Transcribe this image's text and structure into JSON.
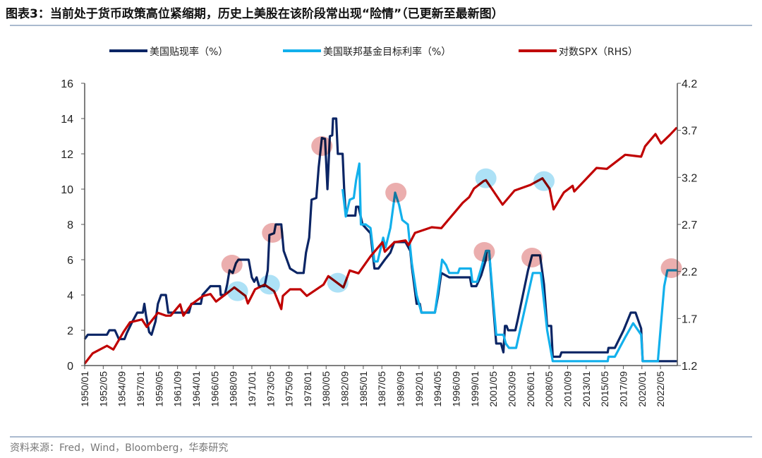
{
  "title": "图表3：当前处于货币政策高位紧缩期，历史上美股在该阶段常出现“险情”（已更新至最新图）",
  "source": "资料来源：Fred，Wind，Bloomberg，华泰研究",
  "chart_data": {
    "type": "line",
    "title": "",
    "legend_position": "top",
    "grid": false,
    "x_ticks": [
      "1950/01",
      "1952/05",
      "1954/09",
      "1957/01",
      "1959/05",
      "1961/09",
      "1964/01",
      "1966/05",
      "1968/09",
      "1971/01",
      "1973/05",
      "1975/09",
      "1978/01",
      "1980/05",
      "1982/09",
      "1985/01",
      "1987/05",
      "1989/09",
      "1992/01",
      "1994/05",
      "1996/09",
      "1999/01",
      "2001/05",
      "2003/09",
      "2006/01",
      "2008/05",
      "2010/09",
      "2013/01",
      "2015/05",
      "2017/09",
      "2020/01",
      "2022/05"
    ],
    "y_left": {
      "range": [
        0,
        16
      ],
      "ticks": [
        "0",
        "2",
        "4",
        "6",
        "8",
        "10",
        "12",
        "14",
        "16"
      ]
    },
    "y_right": {
      "range": [
        1.2,
        4.2
      ],
      "ticks": [
        "1.2",
        "1.7",
        "2.2",
        "2.7",
        "3.2",
        "3.7",
        "4.2"
      ]
    },
    "series": [
      {
        "name": "美国贴现率（%）",
        "axis": "left",
        "color": "#0b2565",
        "points": [
          [
            1950,
            1.5
          ],
          [
            1950.4,
            1.75
          ],
          [
            1952.8,
            1.75
          ],
          [
            1953.1,
            2.0
          ],
          [
            1953.8,
            2.0
          ],
          [
            1954.3,
            1.5
          ],
          [
            1955,
            1.5
          ],
          [
            1955.3,
            1.85
          ],
          [
            1956,
            2.5
          ],
          [
            1956.3,
            2.75
          ],
          [
            1956.6,
            3.0
          ],
          [
            1957.3,
            3.0
          ],
          [
            1957.5,
            3.5
          ],
          [
            1957.7,
            2.85
          ],
          [
            1958.1,
            1.9
          ],
          [
            1958.4,
            1.75
          ],
          [
            1958.9,
            2.5
          ],
          [
            1959.2,
            3.5
          ],
          [
            1959.6,
            4.0
          ],
          [
            1960.2,
            4.0
          ],
          [
            1960.5,
            3.0
          ],
          [
            1963.1,
            3.0
          ],
          [
            1963.4,
            3.5
          ],
          [
            1964.6,
            3.5
          ],
          [
            1964.8,
            4.0
          ],
          [
            1965.8,
            4.5
          ],
          [
            1967,
            4.5
          ],
          [
            1967.1,
            4.0
          ],
          [
            1967.6,
            4.0
          ],
          [
            1967.9,
            4.6
          ],
          [
            1968.2,
            5.4
          ],
          [
            1968.6,
            5.25
          ],
          [
            1969,
            5.8
          ],
          [
            1969.3,
            6.0
          ],
          [
            1970.6,
            6.0
          ],
          [
            1971,
            5.0
          ],
          [
            1971.3,
            4.75
          ],
          [
            1971.6,
            5.0
          ],
          [
            1971.9,
            4.5
          ],
          [
            1972.6,
            4.5
          ],
          [
            1973,
            5.4
          ],
          [
            1973.2,
            7.4
          ],
          [
            1973.8,
            7.5
          ],
          [
            1974,
            8.0
          ],
          [
            1974.7,
            8.0
          ],
          [
            1975,
            6.5
          ],
          [
            1975.4,
            6.0
          ],
          [
            1975.8,
            5.5
          ],
          [
            1976.7,
            5.25
          ],
          [
            1977.5,
            5.25
          ],
          [
            1977.8,
            6.4
          ],
          [
            1978.2,
            7.25
          ],
          [
            1978.5,
            9.4
          ],
          [
            1979.1,
            9.5
          ],
          [
            1979.4,
            11.25
          ],
          [
            1979.8,
            12.9
          ],
          [
            1980.2,
            12.85
          ],
          [
            1980.5,
            10.0
          ],
          [
            1980.8,
            13.0
          ],
          [
            1981.1,
            13.05
          ],
          [
            1981.2,
            14.0
          ],
          [
            1981.6,
            14.0
          ],
          [
            1981.8,
            12.0
          ],
          [
            1982.4,
            12.0
          ],
          [
            1982.6,
            10.0
          ],
          [
            1982.8,
            8.5
          ],
          [
            1984,
            8.5
          ],
          [
            1984.1,
            9.0
          ],
          [
            1984.4,
            9.0
          ],
          [
            1984.9,
            8.0
          ],
          [
            1985.3,
            7.8
          ],
          [
            1985.9,
            7.5
          ],
          [
            1986.4,
            5.5
          ],
          [
            1986.9,
            5.5
          ],
          [
            1987.7,
            6.0
          ],
          [
            1988.4,
            6.4
          ],
          [
            1988.9,
            7.0
          ],
          [
            1990.3,
            7.0
          ],
          [
            1990.9,
            6.5
          ],
          [
            1991.1,
            5.6
          ],
          [
            1991.7,
            3.5
          ],
          [
            1992.1,
            3.5
          ],
          [
            1992.3,
            3.0
          ],
          [
            1994,
            3.0
          ],
          [
            1994.4,
            4.0
          ],
          [
            1994.8,
            5.25
          ],
          [
            1995.8,
            5.0
          ],
          [
            1998.4,
            5.0
          ],
          [
            1998.6,
            4.5
          ],
          [
            1999.2,
            4.5
          ],
          [
            1999.8,
            5.1
          ],
          [
            2000.4,
            6.0
          ],
          [
            2000.5,
            6.5
          ],
          [
            2000.8,
            6.5
          ],
          [
            2001.1,
            4.7
          ],
          [
            2001.7,
            1.25
          ],
          [
            2002.3,
            1.25
          ],
          [
            2002.6,
            0.75
          ],
          [
            2002.8,
            2.25
          ],
          [
            2003,
            2.25
          ],
          [
            2003.2,
            2.0
          ],
          [
            2004.1,
            2.0
          ],
          [
            2004.4,
            2.6
          ],
          [
            2005.7,
            5.4
          ],
          [
            2006.2,
            6.25
          ],
          [
            2007.2,
            6.25
          ],
          [
            2007.7,
            4.6
          ],
          [
            2008.1,
            2.25
          ],
          [
            2008.6,
            2.25
          ],
          [
            2008.8,
            0.5
          ],
          [
            2009.7,
            0.5
          ],
          [
            2009.9,
            0.75
          ],
          [
            2015.7,
            0.75
          ],
          [
            2015.8,
            1.0
          ],
          [
            2016.6,
            1.0
          ],
          [
            2017.7,
            2.0
          ],
          [
            2018.6,
            3.0
          ],
          [
            2019.2,
            3.0
          ],
          [
            2019.9,
            2.1
          ],
          [
            2020.1,
            0.25
          ],
          [
            2024.4,
            0.25
          ]
        ]
      },
      {
        "name": "美国联邦基金目标利率（%）",
        "axis": "left",
        "color": "#12b0ec",
        "points": [
          [
            1982.4,
            10.0
          ],
          [
            1982.8,
            8.45
          ],
          [
            1983.3,
            9.4
          ],
          [
            1983.8,
            9.5
          ],
          [
            1984.1,
            10.5
          ],
          [
            1984.5,
            11.45
          ],
          [
            1984.7,
            8.0
          ],
          [
            1985.3,
            8.0
          ],
          [
            1985.9,
            7.8
          ],
          [
            1986.4,
            5.9
          ],
          [
            1986.8,
            5.9
          ],
          [
            1987.5,
            7.25
          ],
          [
            1987.8,
            6.7
          ],
          [
            1988.4,
            7.8
          ],
          [
            1989.0,
            9.8
          ],
          [
            1989.5,
            9.1
          ],
          [
            1989.9,
            8.25
          ],
          [
            1990.6,
            8.0
          ],
          [
            1991.1,
            5.8
          ],
          [
            1991.7,
            4.0
          ],
          [
            1992.3,
            3.0
          ],
          [
            1994.0,
            3.0
          ],
          [
            1994.5,
            4.6
          ],
          [
            1994.9,
            6.0
          ],
          [
            1995.4,
            5.7
          ],
          [
            1995.8,
            5.25
          ],
          [
            1996.9,
            5.25
          ],
          [
            1997.1,
            5.5
          ],
          [
            1998.5,
            5.5
          ],
          [
            1998.7,
            4.75
          ],
          [
            1999.3,
            4.75
          ],
          [
            1999.8,
            5.5
          ],
          [
            2000.4,
            6.5
          ],
          [
            2000.8,
            6.5
          ],
          [
            2001.3,
            3.8
          ],
          [
            2001.7,
            1.75
          ],
          [
            2002.6,
            1.75
          ],
          [
            2002.9,
            1.25
          ],
          [
            2003.3,
            1.0
          ],
          [
            2004.2,
            1.0
          ],
          [
            2006.3,
            5.25
          ],
          [
            2007.3,
            5.25
          ],
          [
            2008.1,
            2.0
          ],
          [
            2008.8,
            0.25
          ],
          [
            2015.7,
            0.25
          ],
          [
            2015.8,
            0.5
          ],
          [
            2016.6,
            0.5
          ],
          [
            2017.9,
            1.6
          ],
          [
            2018.9,
            2.4
          ],
          [
            2019.9,
            1.75
          ],
          [
            2020.1,
            0.25
          ],
          [
            2022.0,
            0.25
          ],
          [
            2022.4,
            2.4
          ],
          [
            2022.8,
            4.5
          ],
          [
            2023.2,
            5.4
          ],
          [
            2024.4,
            5.4
          ]
        ]
      },
      {
        "name": "对数SPX（RHS）",
        "axis": "right",
        "color": "#c00000",
        "points": [
          [
            1950,
            1.22
          ],
          [
            1951,
            1.33
          ],
          [
            1952.8,
            1.41
          ],
          [
            1953.6,
            1.37
          ],
          [
            1954.9,
            1.56
          ],
          [
            1955.7,
            1.66
          ],
          [
            1957.2,
            1.69
          ],
          [
            1957.8,
            1.61
          ],
          [
            1959.2,
            1.76
          ],
          [
            1960.2,
            1.73
          ],
          [
            1960.8,
            1.73
          ],
          [
            1962.0,
            1.85
          ],
          [
            1962.4,
            1.73
          ],
          [
            1963.4,
            1.85
          ],
          [
            1964.9,
            1.94
          ],
          [
            1965.8,
            1.96
          ],
          [
            1966.5,
            1.88
          ],
          [
            1967.9,
            1.97
          ],
          [
            1968.8,
            2.03
          ],
          [
            1970.2,
            1.94
          ],
          [
            1970.5,
            1.86
          ],
          [
            1971.4,
            2.01
          ],
          [
            1972.6,
            2.06
          ],
          [
            1973.8,
            1.99
          ],
          [
            1974.7,
            1.8
          ],
          [
            1974.9,
            1.94
          ],
          [
            1975.8,
            2.01
          ],
          [
            1977.1,
            2.01
          ],
          [
            1977.9,
            1.94
          ],
          [
            1980,
            2.06
          ],
          [
            1980.6,
            2.15
          ],
          [
            1982.5,
            2.03
          ],
          [
            1983.3,
            2.21
          ],
          [
            1984.4,
            2.18
          ],
          [
            1985.9,
            2.36
          ],
          [
            1987.4,
            2.51
          ],
          [
            1987.7,
            2.41
          ],
          [
            1988.9,
            2.51
          ],
          [
            1990.3,
            2.53
          ],
          [
            1990.7,
            2.48
          ],
          [
            1991.5,
            2.61
          ],
          [
            1993.6,
            2.67
          ],
          [
            1994.8,
            2.66
          ],
          [
            1996.6,
            2.84
          ],
          [
            1997.5,
            2.93
          ],
          [
            1998.3,
            2.99
          ],
          [
            1998.9,
            3.08
          ],
          [
            2000.1,
            3.16
          ],
          [
            2000.4,
            3.17
          ],
          [
            2001.3,
            3.06
          ],
          [
            2002.5,
            2.91
          ],
          [
            2004.0,
            3.06
          ],
          [
            2006.0,
            3.12
          ],
          [
            2007.5,
            3.19
          ],
          [
            2008.4,
            3.08
          ],
          [
            2008.9,
            2.86
          ],
          [
            2010.2,
            3.04
          ],
          [
            2011.3,
            3.11
          ],
          [
            2011.5,
            3.05
          ],
          [
            2014.3,
            3.3
          ],
          [
            2015.6,
            3.29
          ],
          [
            2017.9,
            3.44
          ],
          [
            2019.9,
            3.42
          ],
          [
            2020.4,
            3.53
          ],
          [
            2021.7,
            3.66
          ],
          [
            2022.4,
            3.56
          ],
          [
            2023.5,
            3.65
          ],
          [
            2024.4,
            3.73
          ]
        ]
      }
    ],
    "highlights": {
      "tightening_peaks_color": "#e8a0a0",
      "tightening_peaks": [
        [
          1968.5,
          5.72
        ],
        [
          1973.6,
          7.52
        ],
        [
          1979.8,
          12.44
        ],
        [
          1989.1,
          9.8
        ],
        [
          2000.2,
          6.44
        ],
        [
          2006.2,
          6.12
        ],
        [
          2023.7,
          5.52
        ]
      ],
      "spx_tops_color": "#9fdcf5",
      "spx_tops": [
        [
          1969.2,
          1.99
        ],
        [
          1973.2,
          2.06
        ],
        [
          1981.8,
          2.08
        ],
        [
          2000.4,
          3.19
        ],
        [
          2007.7,
          3.16
        ]
      ]
    }
  }
}
